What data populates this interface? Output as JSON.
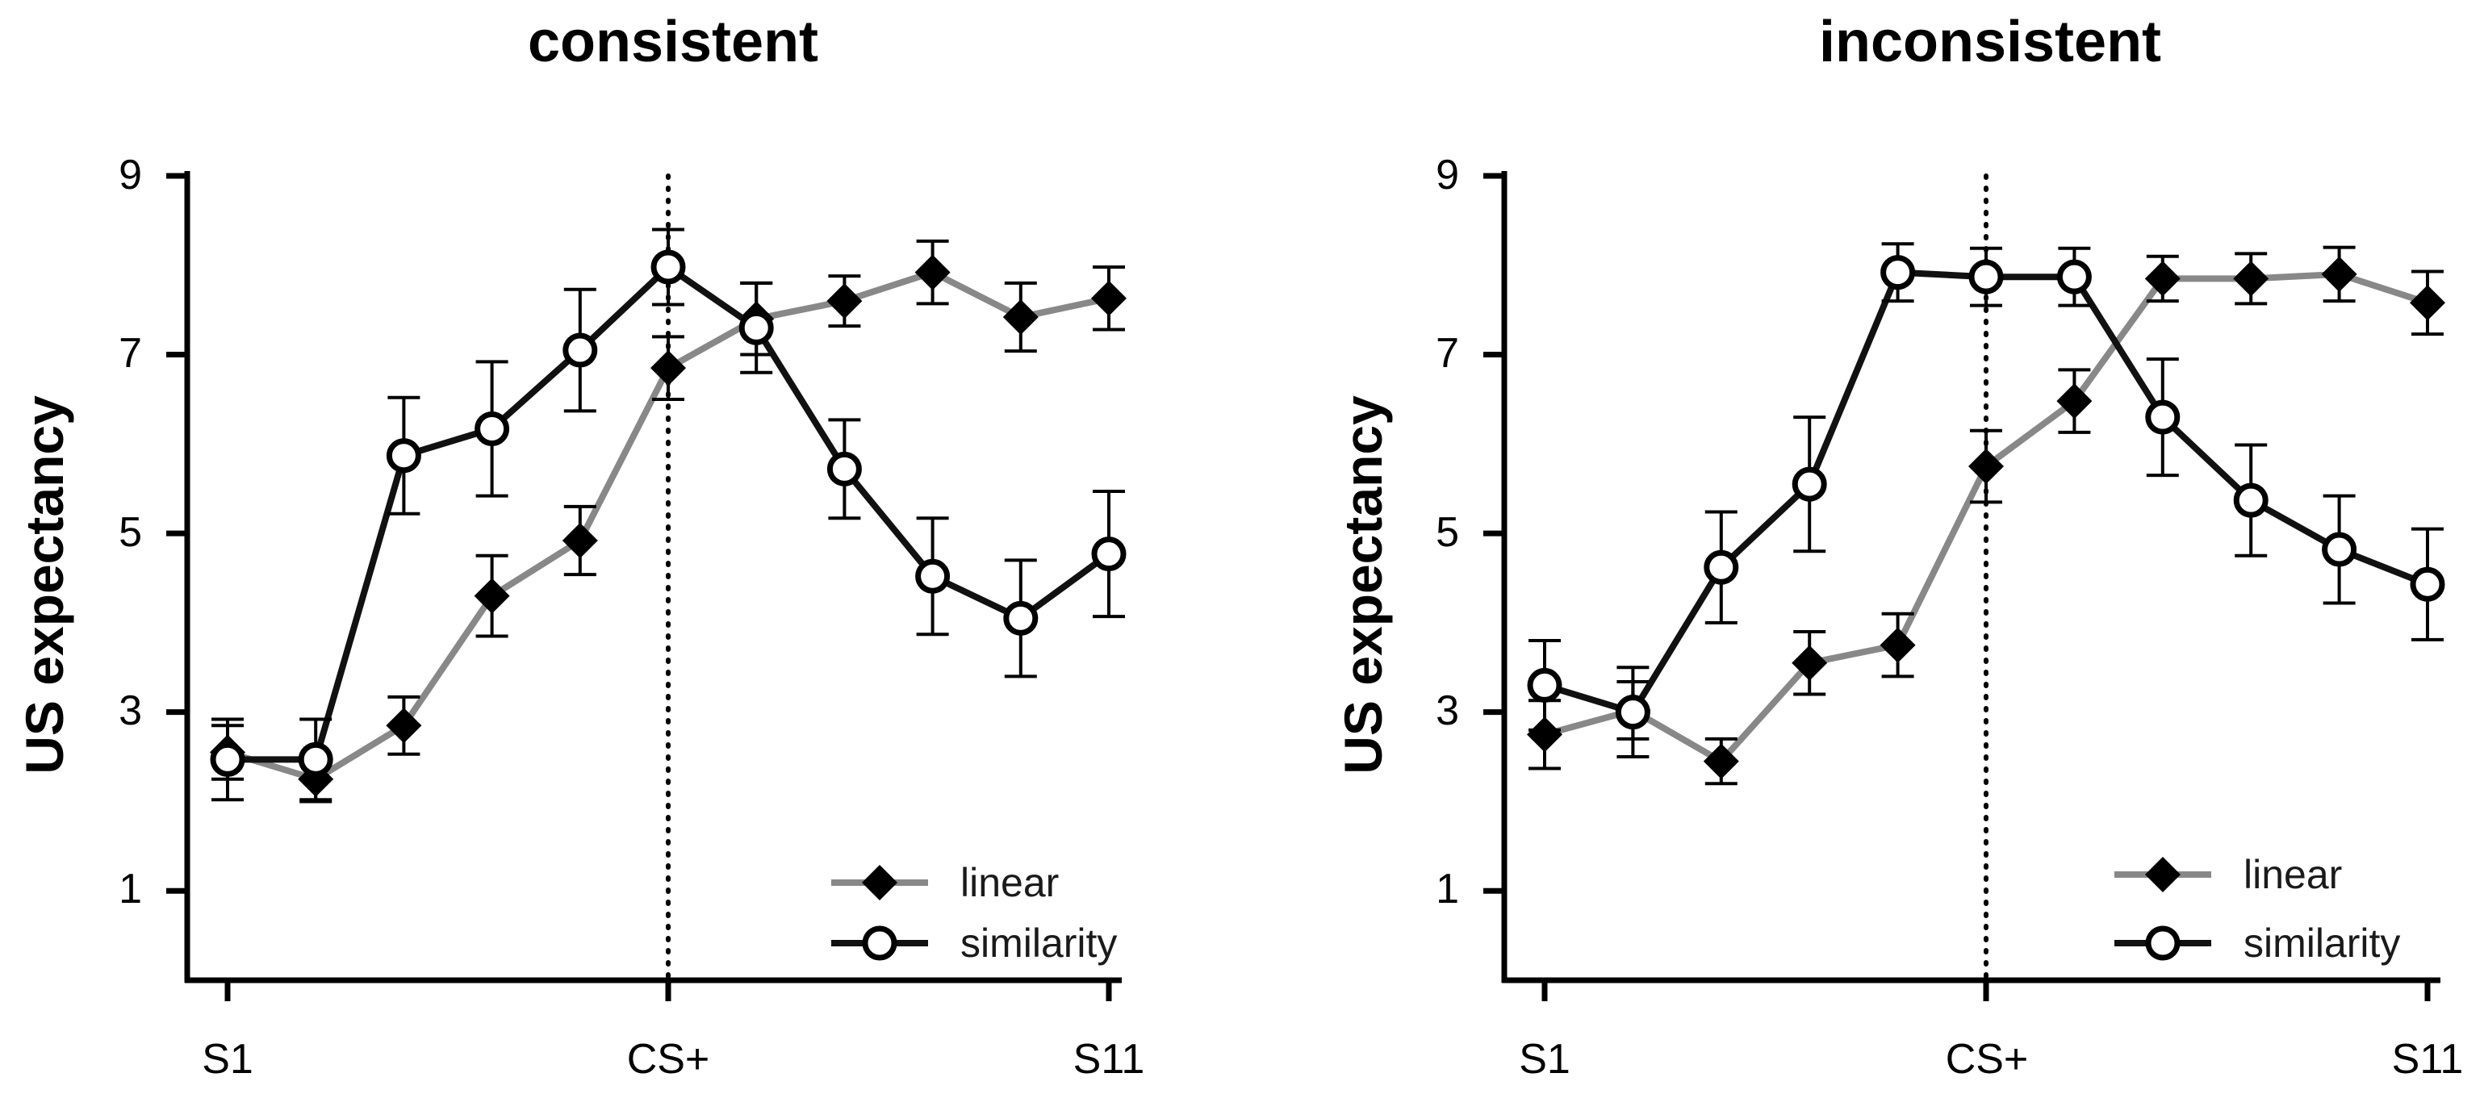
{
  "chart_data": [
    {
      "type": "line",
      "title": "consistent",
      "xlabel": "",
      "ylabel": "US expectancy",
      "ylim": [
        0,
        9
      ],
      "yticks": [
        1,
        3,
        5,
        7,
        9
      ],
      "x": [
        1,
        2,
        3,
        4,
        5,
        6,
        7,
        8,
        9,
        10,
        11
      ],
      "xticks": [
        {
          "x": 1,
          "label": "S1"
        },
        {
          "x": 6,
          "label": "CS+"
        },
        {
          "x": 11,
          "label": "S11"
        }
      ],
      "reference_line_x": 6,
      "legend_position": "bottom-right",
      "series": [
        {
          "name": "linear",
          "marker": "filled-diamond",
          "color": "#888888",
          "values": [
            2.55,
            2.25,
            2.85,
            4.3,
            4.92,
            6.85,
            7.4,
            7.6,
            7.92,
            7.42,
            7.63
          ],
          "errors": [
            0.3,
            0.25,
            0.32,
            0.45,
            0.38,
            0.35,
            0.4,
            0.28,
            0.35,
            0.38,
            0.35
          ]
        },
        {
          "name": "similarity",
          "marker": "open-circle",
          "color": "#111111",
          "values": [
            2.47,
            2.47,
            5.87,
            6.17,
            7.05,
            7.98,
            7.3,
            5.72,
            4.52,
            4.05,
            4.77
          ],
          "errors": [
            0.45,
            0.45,
            0.65,
            0.75,
            0.68,
            0.42,
            0.5,
            0.55,
            0.65,
            0.65,
            0.7
          ]
        }
      ]
    },
    {
      "type": "line",
      "title": "inconsistent",
      "xlabel": "",
      "ylabel": "US expectancy",
      "ylim": [
        0,
        9
      ],
      "yticks": [
        1,
        3,
        5,
        7,
        9
      ],
      "x": [
        1,
        2,
        3,
        4,
        5,
        6,
        7,
        8,
        9,
        10,
        11
      ],
      "xticks": [
        {
          "x": 1,
          "label": "S1"
        },
        {
          "x": 6,
          "label": "CS+"
        },
        {
          "x": 11,
          "label": "S11"
        }
      ],
      "reference_line_x": 6,
      "legend_position": "bottom-right",
      "series": [
        {
          "name": "linear",
          "marker": "filled-diamond",
          "color": "#888888",
          "values": [
            2.75,
            3.02,
            2.45,
            3.55,
            3.75,
            5.75,
            6.48,
            7.85,
            7.85,
            7.9,
            7.58
          ],
          "errors": [
            0.38,
            0.32,
            0.25,
            0.35,
            0.35,
            0.4,
            0.35,
            0.25,
            0.28,
            0.3,
            0.35
          ]
        },
        {
          "name": "similarity",
          "marker": "open-circle",
          "color": "#111111",
          "values": [
            3.3,
            3.0,
            4.62,
            5.55,
            7.92,
            7.87,
            7.87,
            6.3,
            5.37,
            4.82,
            4.43
          ],
          "errors": [
            0.5,
            0.5,
            0.62,
            0.75,
            0.32,
            0.32,
            0.32,
            0.65,
            0.62,
            0.6,
            0.62
          ]
        }
      ]
    }
  ]
}
